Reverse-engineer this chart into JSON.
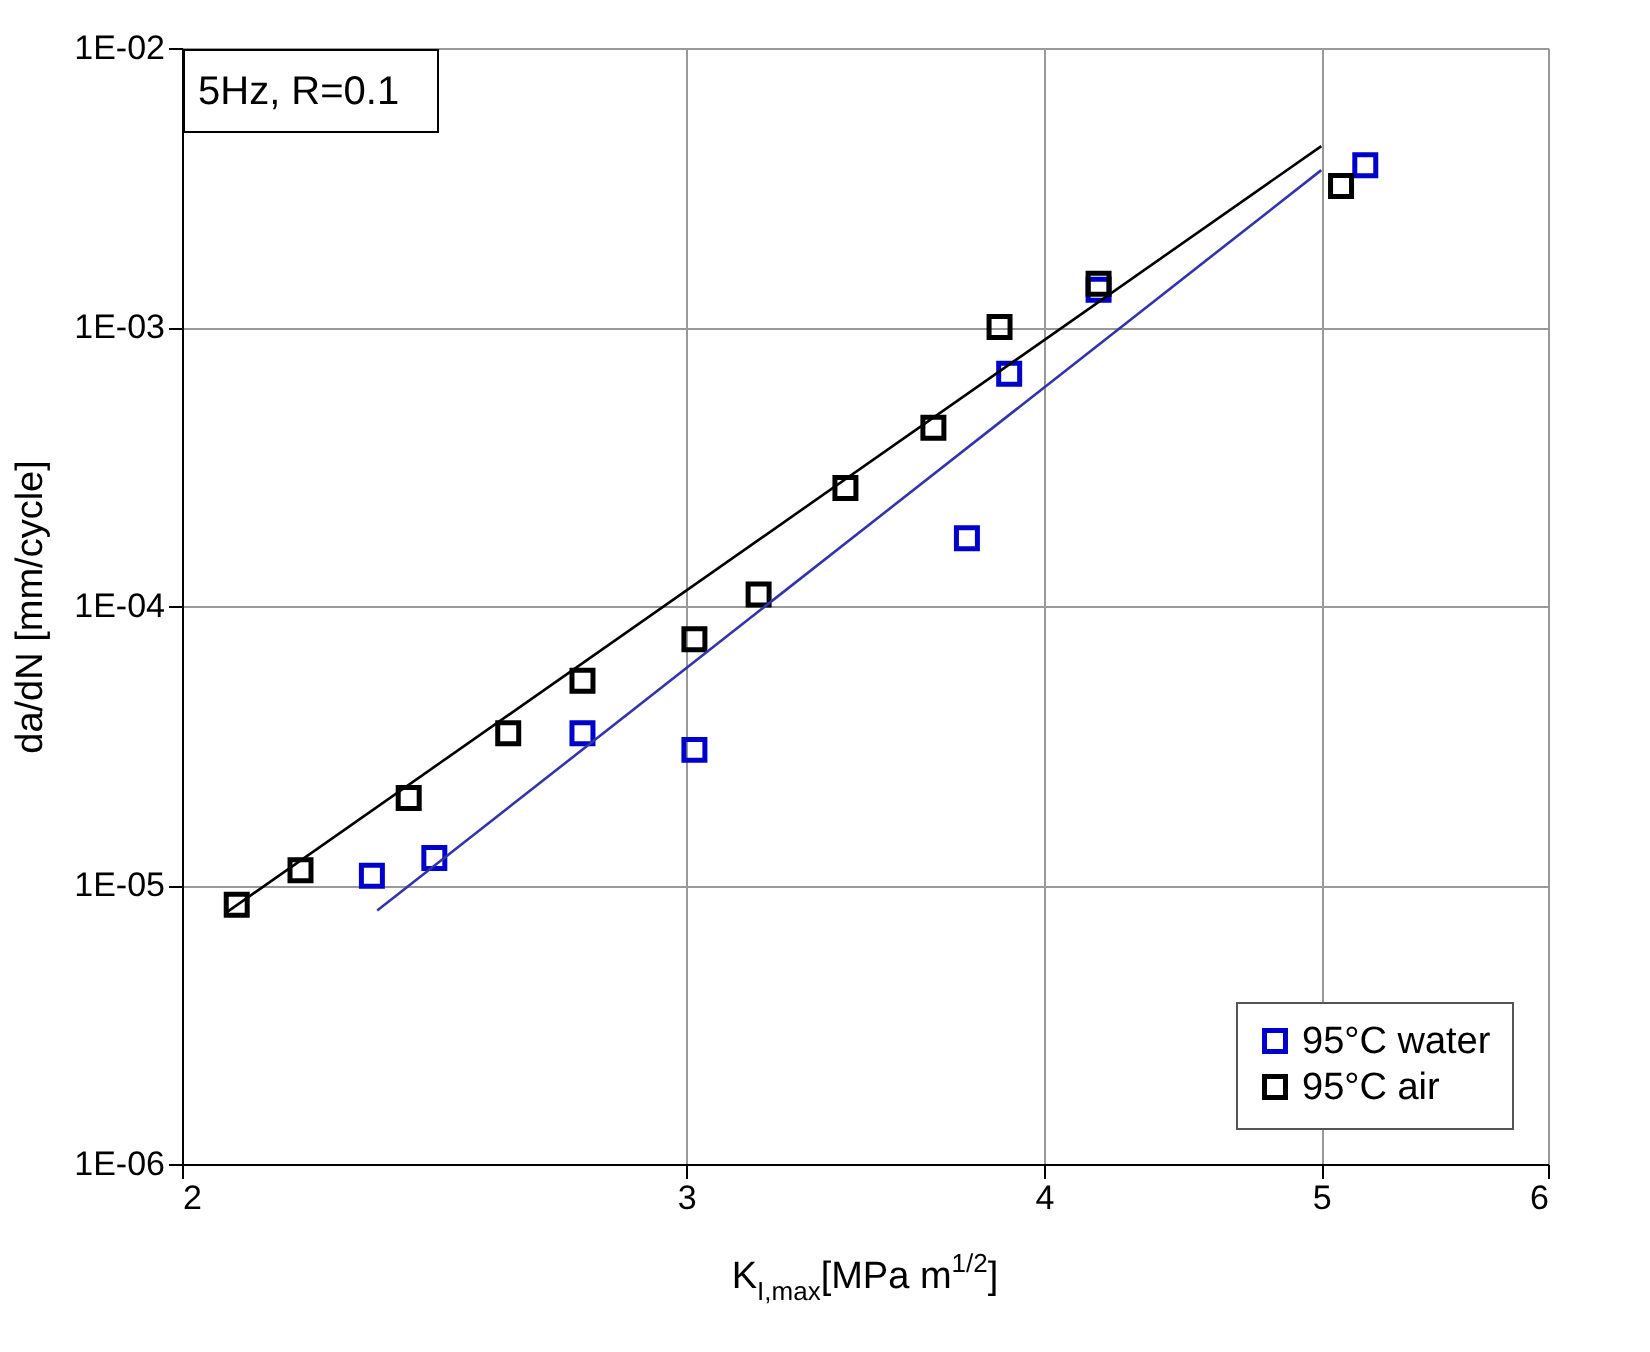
{
  "chart_data": {
    "type": "scatter",
    "log": "xy",
    "xlabel": "K$_{I,max}$[MPa m$^{1/2}$]",
    "ylabel": "da/dN [mm/cycle]",
    "xlim": [
      2,
      6
    ],
    "xticks": [
      2,
      3,
      4,
      5,
      6
    ],
    "ylim": [
      1e-06,
      0.01
    ],
    "yticks": [
      {
        "value": 1e-06,
        "label": "1E-06"
      },
      {
        "value": 1e-05,
        "label": "1E-05"
      },
      {
        "value": 0.0001,
        "label": "1E-04"
      },
      {
        "value": 0.001,
        "label": "1E-03"
      },
      {
        "value": 0.01,
        "label": "1E-02"
      }
    ],
    "grid": true,
    "legend": "bottom right",
    "marker": "square",
    "annotations": [
      "5Hz, R=0.1"
    ],
    "series": [
      {
        "name": "95°C water",
        "color": "#0000cc",
        "x": [
          2.33,
          2.45,
          2.76,
          3.02,
          3.76,
          3.89,
          4.18,
          5.18
        ],
        "values": [
          1.08e-05,
          1.25e-05,
          3.5e-05,
          3.05e-05,
          0.000175,
          0.00068,
          0.00136,
          0.0038
        ]
      },
      {
        "name": "95°C air",
        "color": "#000000",
        "x": [
          2.09,
          2.2,
          2.4,
          2.6,
          2.76,
          3.02,
          3.18,
          3.41,
          3.66,
          3.86,
          4.18,
          5.08
        ],
        "values": [
          8.5e-06,
          1.13e-05,
          2.05e-05,
          3.5e-05,
          5.4e-05,
          7.6e-05,
          0.00011,
          0.000265,
          0.000435,
          0.001,
          0.00143,
          0.0032
        ]
      },
      {
        "type": "line",
        "color": "#3333aa",
        "marker": "none",
        "line_style": "solid",
        "x": [
          2.34,
          5.0
        ],
        "values": [
          8.1e-06,
          0.00365
        ]
      },
      {
        "type": "line",
        "color": "#000000",
        "marker": "none",
        "line_style": "solid",
        "x": [
          2.07,
          5.0
        ],
        "values": [
          7.9e-06,
          0.00445
        ]
      }
    ]
  }
}
